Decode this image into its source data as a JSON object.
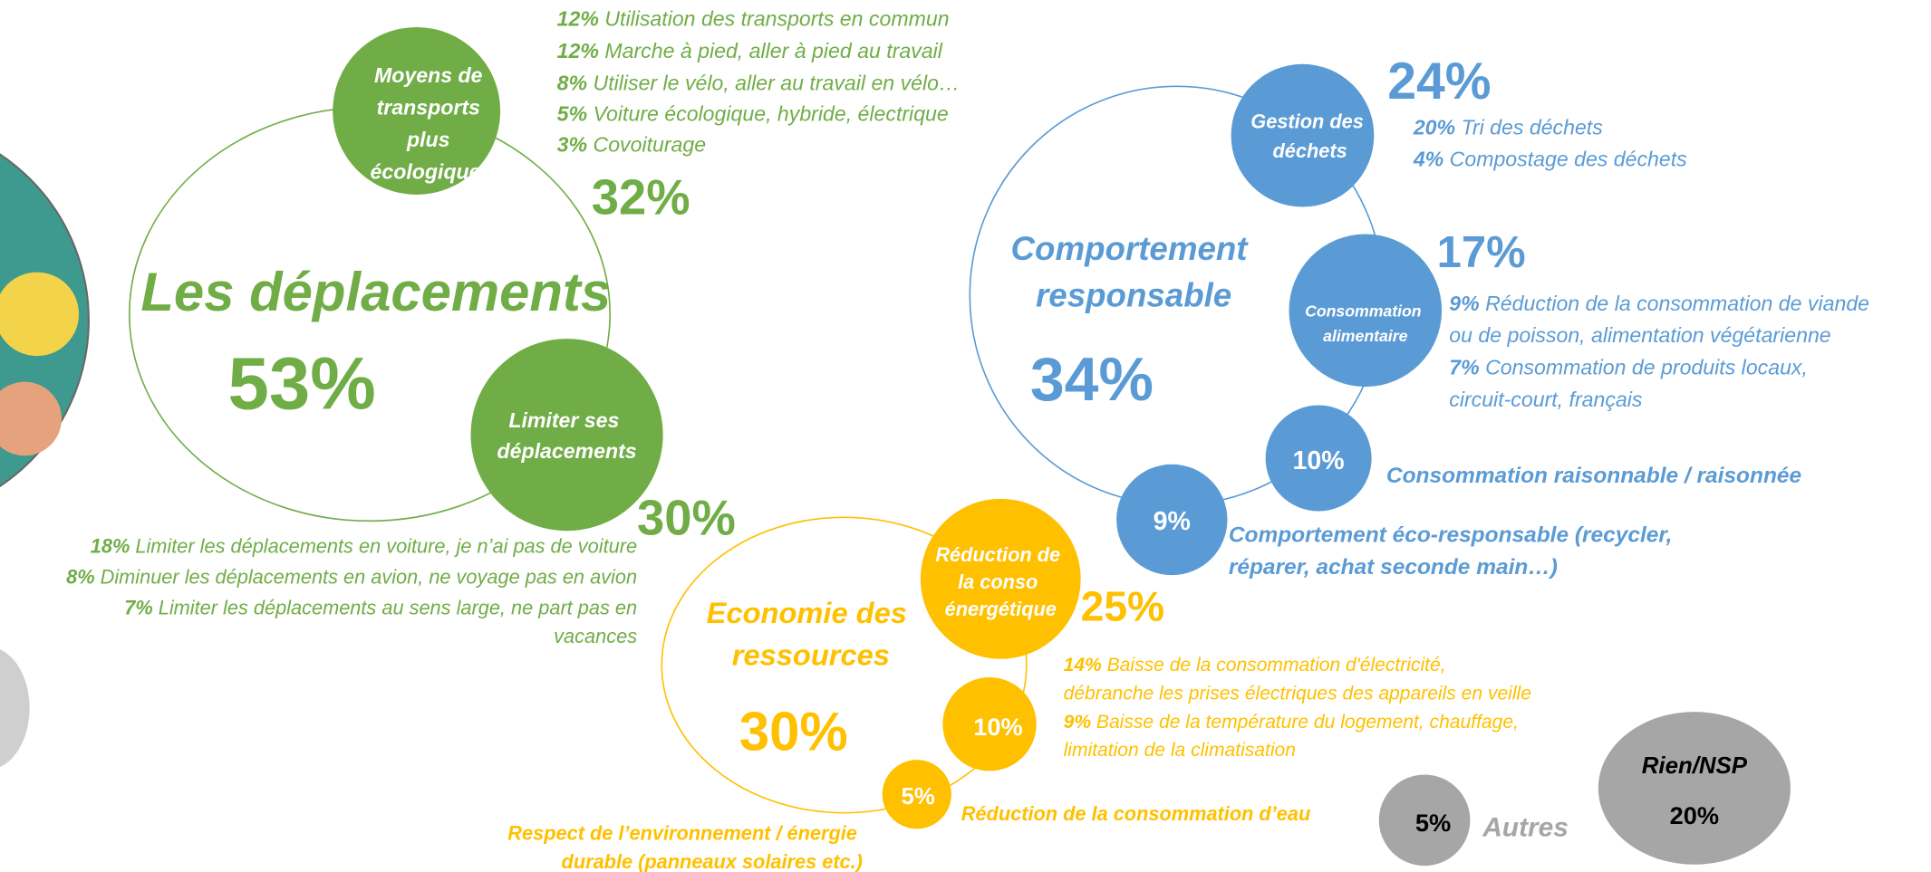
{
  "deplacements": {
    "title": "Les déplacements",
    "total": "53%",
    "transports": {
      "label": [
        "Moyens de",
        "transports",
        "plus",
        "écologiques"
      ],
      "total": "32%",
      "items": [
        {
          "pct": "12%",
          "text": [
            "Utilisation des transports en commun"
          ]
        },
        {
          "pct": "12%",
          "text": [
            "Marche à pied, aller à pied au travail"
          ]
        },
        {
          "pct": "8%",
          "text": [
            "Utiliser le vélo, aller au travail en vélo…"
          ]
        },
        {
          "pct": "5%",
          "text": [
            "Voiture écologique, hybride, électrique"
          ]
        },
        {
          "pct": "3%",
          "text": [
            "Covoiturage"
          ]
        }
      ]
    },
    "limiter": {
      "label": [
        "Limiter ses",
        "déplacements"
      ],
      "total": "30%",
      "items": [
        {
          "pct": "18%",
          "text": [
            "Limiter les déplacements en voiture, je n’ai pas de voiture"
          ]
        },
        {
          "pct": "8%",
          "text": [
            "Diminuer les déplacements en avion, ne voyage pas en avion"
          ]
        },
        {
          "pct": "7%",
          "text": [
            "Limiter les déplacements au sens large, ne part pas en",
            "vacances"
          ]
        }
      ]
    }
  },
  "comportement": {
    "title": [
      "Comportement",
      "responsable"
    ],
    "total": "34%",
    "dechets": {
      "label": [
        "Gestion des",
        "déchets"
      ],
      "total": "24%",
      "items": [
        {
          "pct": "20%",
          "text": [
            "Tri des déchets"
          ]
        },
        {
          "pct": "4%",
          "text": [
            "Compostage des déchets"
          ]
        }
      ]
    },
    "alimentaire": {
      "label": [
        "Consommation",
        "alimentaire"
      ],
      "total": "17%",
      "items": [
        {
          "pct": "9%",
          "text": [
            "Réduction de la consommation de viande",
            "ou de poisson, alimentation végétarienne"
          ]
        },
        {
          "pct": "7%",
          "text": [
            "Consommation de produits locaux,",
            "circuit-court, français"
          ]
        }
      ]
    },
    "raisonnable": {
      "total": "10%",
      "text": [
        "Consommation raisonnable / raisonnée"
      ]
    },
    "eco": {
      "total": "9%",
      "text": [
        "Comportement éco-responsable (recycler,",
        "réparer, achat seconde main…)"
      ]
    }
  },
  "economie": {
    "title": [
      "Economie des",
      "ressources"
    ],
    "total": "30%",
    "energie": {
      "label": [
        "Réduction de",
        "la conso",
        "énergétique"
      ],
      "total": "25%",
      "items": [
        {
          "pct": "14%",
          "text": [
            "Baisse de la consommation d'électricité,",
            "débranche les prises électriques des appareils en veille"
          ]
        },
        {
          "pct": "9%",
          "text": [
            "Baisse de la température du logement, chauffage,",
            "limitation de la climatisation"
          ]
        }
      ]
    },
    "eau": {
      "total": "10%",
      "text": [
        "Réduction de la consommation d’eau"
      ]
    },
    "durable": {
      "total": "5%",
      "text": [
        "Respect de l’environnement / énergie",
        "durable (panneaux solaires etc.)"
      ]
    }
  },
  "autres": {
    "total": "5%",
    "label": "Autres"
  },
  "rien": {
    "label": "Rien/NSP",
    "total": "20%"
  }
}
